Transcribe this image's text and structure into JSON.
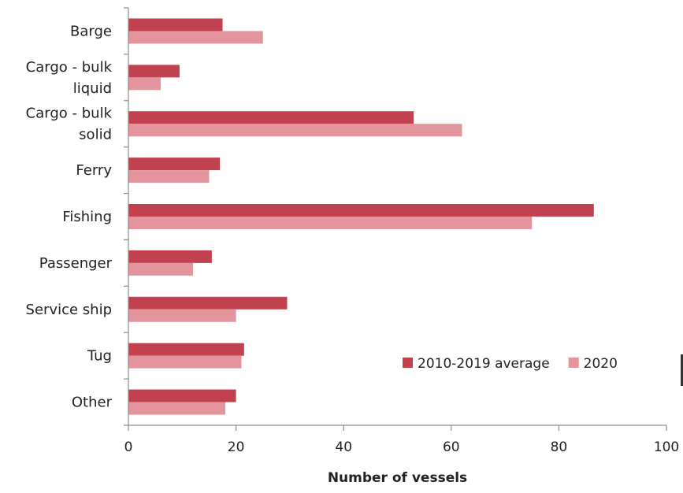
{
  "chart_data": {
    "type": "bar",
    "orientation": "horizontal",
    "title": "",
    "xlabel": "Number of vessels",
    "ylabel": "",
    "xlim": [
      0,
      100
    ],
    "xticks": [
      0,
      20,
      40,
      60,
      80,
      100
    ],
    "grid": false,
    "legend_position": "lower-right",
    "categories": [
      [
        "Barge"
      ],
      [
        "Cargo - bulk",
        "liquid"
      ],
      [
        "Cargo - bulk",
        "solid"
      ],
      [
        "Ferry"
      ],
      [
        "Fishing"
      ],
      [
        "Passenger"
      ],
      [
        "Service ship"
      ],
      [
        "Tug"
      ],
      [
        "Other"
      ]
    ],
    "series": [
      {
        "name": "2010-2019 average",
        "color": "#c1414f",
        "values": [
          17.5,
          9.5,
          53,
          17,
          86.5,
          15.5,
          29.5,
          21.5,
          20
        ]
      },
      {
        "name": "2020",
        "color": "#e3949c",
        "values": [
          25,
          6,
          62,
          15,
          75,
          12,
          20,
          21,
          18
        ]
      }
    ]
  }
}
